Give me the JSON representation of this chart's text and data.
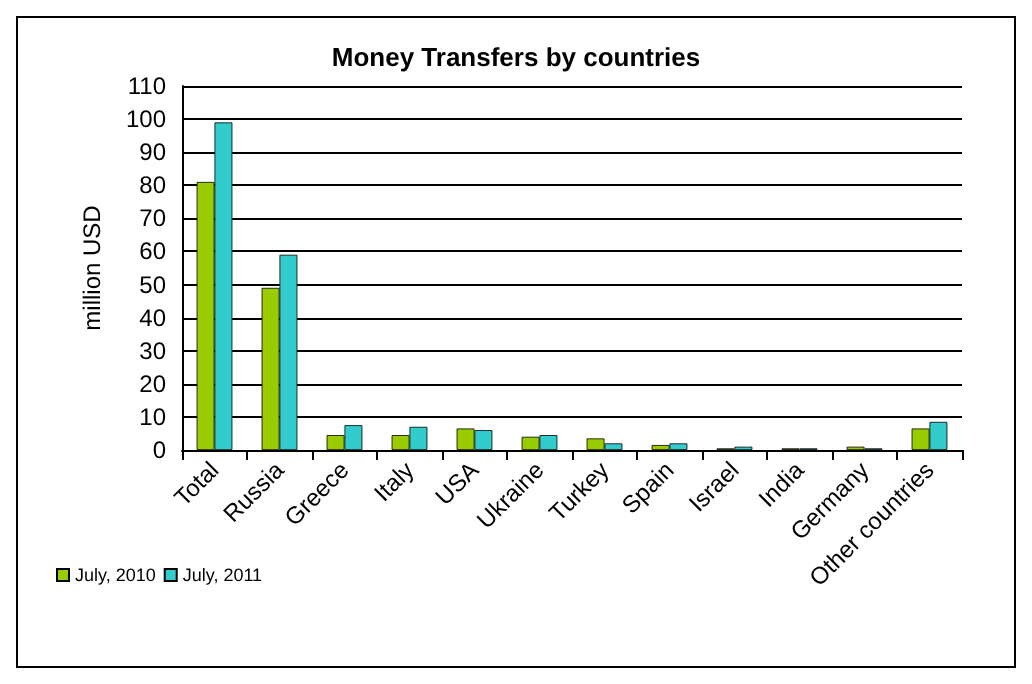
{
  "chart_data": {
    "type": "bar",
    "title": "Money Transfers by countries",
    "ylabel": "million USD",
    "categories": [
      "Total",
      "Russia",
      "Greece",
      "Italy",
      "USA",
      "Ukraine",
      "Turkey",
      "Spain",
      "Israel",
      "India",
      "Germany",
      "Other countries"
    ],
    "series": [
      {
        "name": "July, 2010",
        "color": "#99cc00",
        "values": [
          81,
          49,
          4.5,
          4.5,
          6.5,
          4,
          3.5,
          1.5,
          0.5,
          0.5,
          1,
          6.5
        ]
      },
      {
        "name": "July, 2011",
        "color": "#33cccc",
        "values": [
          99,
          59,
          7.5,
          7,
          6,
          4.5,
          2,
          2,
          1,
          0.5,
          0.5,
          8.5
        ]
      }
    ],
    "ylim": [
      0,
      110
    ],
    "yticks": [
      0,
      10,
      20,
      30,
      40,
      50,
      60,
      70,
      80,
      90,
      100,
      110
    ],
    "grid": "y",
    "legend": "bottom left"
  }
}
